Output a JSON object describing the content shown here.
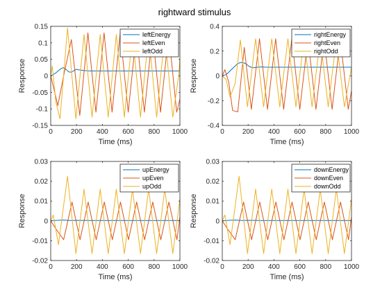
{
  "figure": {
    "title": "rightward stimulus",
    "colors": {
      "energy": "#0072BD",
      "even": "#D95319",
      "odd": "#EDB120"
    }
  },
  "chart_data": [
    {
      "type": "line",
      "title": "",
      "xlabel": "Time (ms)",
      "ylabel": "Response",
      "xlim": [
        0,
        1000
      ],
      "ylim": [
        -0.15,
        0.15
      ],
      "xticks": [
        0,
        200,
        400,
        600,
        800,
        1000
      ],
      "xtick_labels": [
        "0",
        "200",
        "400",
        "600",
        "800",
        "1000"
      ],
      "yticks": [
        -0.15,
        -0.1,
        -0.05,
        0,
        0.05,
        0.1,
        0.15
      ],
      "ytick_labels": [
        "-0.15",
        "-0.1",
        "-0.05",
        "0",
        "0.05",
        "0.1",
        "0.15"
      ],
      "legend": "top-right",
      "series": [
        {
          "name": "leftEnergy",
          "color": "#0072BD",
          "x": [
            0,
            20,
            40,
            60,
            80,
            100,
            120,
            140,
            160,
            180,
            200,
            220,
            260,
            300,
            400,
            600,
            800,
            1000
          ],
          "y": [
            0,
            0.004,
            0.009,
            0.016,
            0.022,
            0.025,
            0.019,
            0.012,
            0.011,
            0.016,
            0.02,
            0.018,
            0.016,
            0.015,
            0.015,
            0.015,
            0.015,
            0.015
          ]
        },
        {
          "name": "leftEven",
          "color": "#D95319",
          "x": [
            0,
            25,
            55,
            100,
            160,
            225,
            288,
            350,
            413,
            475,
            538,
            600,
            663,
            725,
            788,
            850,
            913,
            975,
            1000
          ],
          "y": [
            0,
            -0.04,
            -0.09,
            0.0,
            0.11,
            -0.12,
            0.13,
            -0.11,
            0.13,
            -0.11,
            0.13,
            -0.11,
            0.13,
            -0.11,
            0.13,
            -0.11,
            0.13,
            -0.11,
            -0.07
          ]
        },
        {
          "name": "leftOdd",
          "color": "#EDB120",
          "x": [
            0,
            12,
            40,
            72,
            130,
            195,
            258,
            320,
            383,
            445,
            508,
            570,
            633,
            695,
            758,
            820,
            883,
            945,
            990,
            1000
          ],
          "y": [
            0,
            0.03,
            -0.08,
            -0.13,
            0.145,
            -0.13,
            0.125,
            -0.125,
            0.125,
            -0.125,
            0.125,
            -0.125,
            0.125,
            -0.125,
            0.125,
            -0.125,
            0.125,
            -0.125,
            0.0,
            0.05
          ]
        }
      ]
    },
    {
      "type": "line",
      "title": "",
      "xlabel": "Time (ms)",
      "ylabel": "Response",
      "xlim": [
        0,
        1000
      ],
      "ylim": [
        -0.4,
        0.4
      ],
      "xticks": [
        0,
        200,
        400,
        600,
        800,
        1000
      ],
      "xtick_labels": [
        "0",
        "200",
        "400",
        "600",
        "800",
        "1000"
      ],
      "yticks": [
        -0.4,
        -0.2,
        0,
        0.2,
        0.4
      ],
      "ytick_labels": [
        "-0.4",
        "-0.2",
        "0",
        "0.2",
        "0.4"
      ],
      "legend": "top-right",
      "series": [
        {
          "name": "rightEnergy",
          "color": "#0072BD",
          "x": [
            0,
            30,
            60,
            90,
            120,
            150,
            180,
            210,
            240,
            270,
            300,
            340,
            400,
            600,
            800,
            1000
          ],
          "y": [
            0,
            0.01,
            0.04,
            0.07,
            0.1,
            0.11,
            0.1,
            0.075,
            0.065,
            0.07,
            0.072,
            0.07,
            0.07,
            0.07,
            0.07,
            0.07
          ]
        },
        {
          "name": "rightEven",
          "color": "#D95319",
          "x": [
            0,
            20,
            50,
            80,
            120,
            170,
            225,
            288,
            350,
            413,
            475,
            538,
            600,
            663,
            725,
            788,
            850,
            913,
            975,
            1000
          ],
          "y": [
            0,
            0.05,
            -0.05,
            -0.28,
            -0.29,
            0.23,
            -0.27,
            0.3,
            -0.27,
            0.3,
            -0.27,
            0.3,
            -0.27,
            0.3,
            -0.27,
            0.3,
            -0.27,
            0.3,
            -0.27,
            -0.12
          ]
        },
        {
          "name": "rightOdd",
          "color": "#EDB120",
          "x": [
            0,
            30,
            60,
            100,
            140,
            195,
            258,
            320,
            383,
            445,
            508,
            570,
            633,
            695,
            758,
            820,
            883,
            945,
            1000
          ],
          "y": [
            0,
            -0.03,
            -0.17,
            -0.06,
            0.29,
            -0.25,
            0.3,
            -0.25,
            0.3,
            -0.25,
            0.3,
            -0.25,
            0.3,
            -0.25,
            0.3,
            -0.25,
            0.3,
            -0.25,
            0.07
          ]
        }
      ]
    },
    {
      "type": "line",
      "title": "",
      "xlabel": "Time (ms)",
      "ylabel": "Response",
      "xlim": [
        0,
        1000
      ],
      "ylim": [
        -0.02,
        0.03
      ],
      "xticks": [
        0,
        200,
        400,
        600,
        800,
        1000
      ],
      "xtick_labels": [
        "0",
        "200",
        "400",
        "600",
        "800",
        "1000"
      ],
      "yticks": [
        -0.02,
        -0.01,
        0,
        0.01,
        0.02,
        0.03
      ],
      "ytick_labels": [
        "-0.02",
        "-0.01",
        "0",
        "0.01",
        "0.02",
        "0.03"
      ],
      "legend": "top-right",
      "series": [
        {
          "name": "upEnergy",
          "color": "#0072BD",
          "x": [
            0,
            50,
            100,
            150,
            200,
            300,
            400,
            600,
            800,
            1000
          ],
          "y": [
            0,
            0.0003,
            0.0004,
            0.0002,
            0.0003,
            0.0002,
            0.0002,
            0.0002,
            0.0002,
            0.0002
          ]
        },
        {
          "name": "upEven",
          "color": "#D95319",
          "x": [
            0,
            40,
            100,
            165,
            227,
            290,
            352,
            415,
            477,
            540,
            602,
            665,
            727,
            790,
            852,
            915,
            977,
            1000
          ],
          "y": [
            0,
            -0.004,
            -0.0095,
            0.0095,
            -0.0095,
            0.0095,
            -0.0095,
            0.0095,
            -0.0095,
            0.0095,
            -0.0095,
            0.0095,
            -0.0095,
            0.0095,
            -0.0095,
            0.0095,
            -0.0095,
            0.002
          ]
        },
        {
          "name": "upOdd",
          "color": "#EDB120",
          "x": [
            0,
            20,
            60,
            130,
            195,
            258,
            320,
            383,
            445,
            508,
            570,
            633,
            695,
            758,
            820,
            883,
            945,
            1000
          ],
          "y": [
            0,
            0.003,
            -0.012,
            0.0225,
            -0.0165,
            0.016,
            -0.0165,
            0.016,
            -0.0165,
            0.016,
            -0.0165,
            0.016,
            -0.0165,
            0.016,
            -0.0165,
            0.016,
            -0.0165,
            0.011
          ]
        }
      ]
    },
    {
      "type": "line",
      "title": "",
      "xlabel": "Time (ms)",
      "ylabel": "Response",
      "xlim": [
        0,
        1000
      ],
      "ylim": [
        -0.02,
        0.03
      ],
      "xticks": [
        0,
        200,
        400,
        600,
        800,
        1000
      ],
      "xtick_labels": [
        "0",
        "200",
        "400",
        "600",
        "800",
        "1000"
      ],
      "yticks": [
        -0.02,
        -0.01,
        0,
        0.01,
        0.02,
        0.03
      ],
      "ytick_labels": [
        "-0.02",
        "-0.01",
        "0",
        "0.01",
        "0.02",
        "0.03"
      ],
      "legend": "top-right",
      "series": [
        {
          "name": "downEnergy",
          "color": "#0072BD",
          "x": [
            0,
            50,
            100,
            150,
            200,
            300,
            400,
            600,
            800,
            1000
          ],
          "y": [
            0,
            0.0003,
            0.0004,
            0.0002,
            0.0003,
            0.0002,
            0.0002,
            0.0002,
            0.0002,
            0.0002
          ]
        },
        {
          "name": "downEven",
          "color": "#D95319",
          "x": [
            0,
            40,
            100,
            165,
            227,
            290,
            352,
            415,
            477,
            540,
            602,
            665,
            727,
            790,
            852,
            915,
            977,
            1000
          ],
          "y": [
            0,
            -0.004,
            -0.0095,
            0.0095,
            -0.0095,
            0.0095,
            -0.0095,
            0.0095,
            -0.0095,
            0.0095,
            -0.0095,
            0.0095,
            -0.0095,
            0.0095,
            -0.0095,
            0.0095,
            -0.0095,
            0.002
          ]
        },
        {
          "name": "downOdd",
          "color": "#EDB120",
          "x": [
            0,
            20,
            60,
            130,
            195,
            258,
            320,
            383,
            445,
            508,
            570,
            633,
            695,
            758,
            820,
            883,
            945,
            1000
          ],
          "y": [
            0,
            0.003,
            -0.012,
            0.0225,
            -0.0165,
            0.016,
            -0.0165,
            0.016,
            -0.0165,
            0.016,
            -0.0165,
            0.016,
            -0.0165,
            0.016,
            -0.0165,
            0.016,
            -0.0165,
            0.011
          ]
        }
      ]
    }
  ]
}
